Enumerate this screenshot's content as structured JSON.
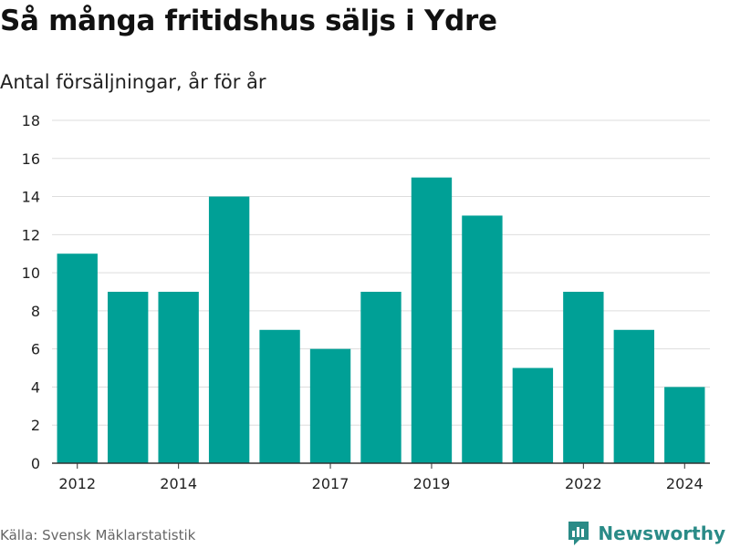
{
  "header": {
    "title": "Så många fritidshus säljs i Ydre",
    "subtitle": "Antal försäljningar, år för år"
  },
  "footer": {
    "source": "Källa: Svensk Mäklarstatistik",
    "brand": "Newsworthy"
  },
  "colors": {
    "bar": "#00A096",
    "brand": "#2a8b87",
    "grid": "#dddddd",
    "axis": "#333333"
  },
  "chart_data": {
    "type": "bar",
    "categories": [
      "2012",
      "2013",
      "2014",
      "2015",
      "2016",
      "2017",
      "2018",
      "2019",
      "2020",
      "2021",
      "2022",
      "2023",
      "2024"
    ],
    "values": [
      11,
      9,
      9,
      14,
      7,
      6,
      9,
      15,
      13,
      5,
      9,
      7,
      4
    ],
    "x_tick_labels": [
      "2012",
      "2014",
      "2017",
      "2019",
      "2022",
      "2024"
    ],
    "y_ticks": [
      0,
      2,
      4,
      6,
      8,
      10,
      12,
      14,
      16,
      18
    ],
    "ylim": [
      0,
      18
    ],
    "grid": true,
    "legend": "none"
  }
}
